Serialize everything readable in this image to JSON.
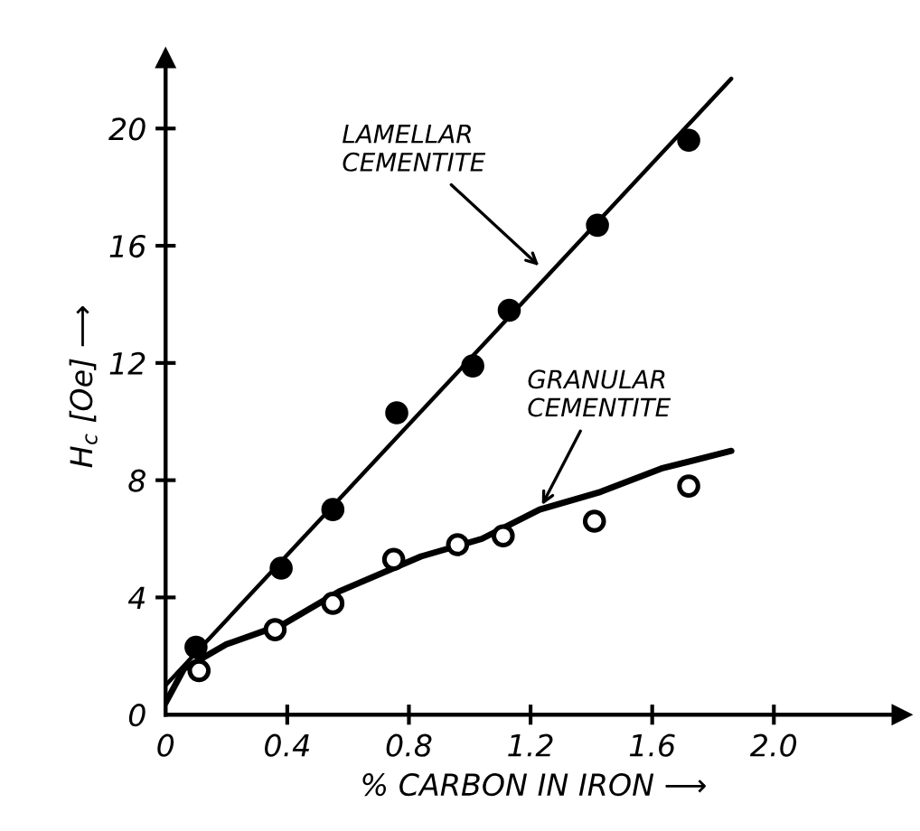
{
  "chart_data": {
    "type": "scatter",
    "xlabel": "% CARBON IN IRON ⟶",
    "ylabel": "H$_{c}$ [Oe] ⟶",
    "xlim": [
      0,
      2.42
    ],
    "ylim": [
      0,
      22.4
    ],
    "xticks": [
      0,
      0.4,
      0.8,
      1.2,
      1.6,
      {
        "value": 2,
        "label": "2.0"
      }
    ],
    "yticks": [
      0,
      4,
      8,
      12,
      16,
      20
    ],
    "grid": false,
    "legend": false,
    "series": [
      {
        "marker": "circle",
        "color": "#000000",
        "x": [
          0.1,
          0.38,
          0.55,
          0.76,
          1.01,
          1.13,
          1.42,
          1.72
        ],
        "values": [
          2.3,
          5.0,
          7.0,
          10.3,
          11.9,
          13.8,
          16.7,
          19.6
        ]
      },
      {
        "type": "line",
        "marker": "none",
        "color": "#000000",
        "x": [
          0,
          1.86
        ],
        "values": [
          1.0,
          21.7
        ]
      },
      {
        "marker": "circle",
        "color": "#ffffff",
        "x": [
          0.11,
          0.36,
          0.55,
          0.75,
          0.96,
          1.11,
          1.41,
          1.72
        ],
        "values": [
          1.5,
          2.9,
          3.8,
          5.3,
          5.8,
          6.1,
          6.6,
          7.8
        ]
      },
      {
        "type": "line",
        "marker": "none",
        "color": "#000000",
        "x": [
          0,
          0.06,
          0.2,
          0.39,
          0.57,
          0.84,
          1.04,
          1.23,
          1.43,
          1.63,
          1.86
        ],
        "values": [
          0.4,
          1.56,
          2.4,
          3.1,
          4.2,
          5.4,
          6.0,
          7.0,
          7.6,
          8.4,
          9.0
        ]
      }
    ],
    "annotations": [
      {
        "text": "LAMELLAR\nCEMENTITE",
        "x": 1.24,
        "y": 15.2
      },
      {
        "text": "GRANULAR\nCEMENTITE",
        "x": 1.23,
        "y": 7.0
      }
    ]
  }
}
